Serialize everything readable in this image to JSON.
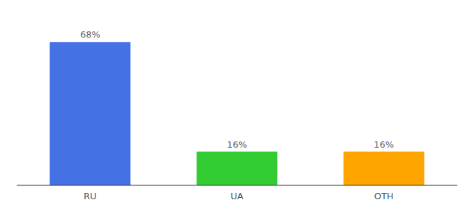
{
  "chart_data": {
    "type": "bar",
    "categories": [
      "RU",
      "UA",
      "OTH"
    ],
    "values": [
      68,
      16,
      16
    ],
    "value_labels": [
      "68%",
      "16%",
      "16%"
    ],
    "colors": [
      "#4472E4",
      "#33CC33",
      "#FFA500"
    ],
    "ylim": [
      0,
      80
    ],
    "data_labels": true,
    "tick_labels": "x",
    "grid": false
  }
}
